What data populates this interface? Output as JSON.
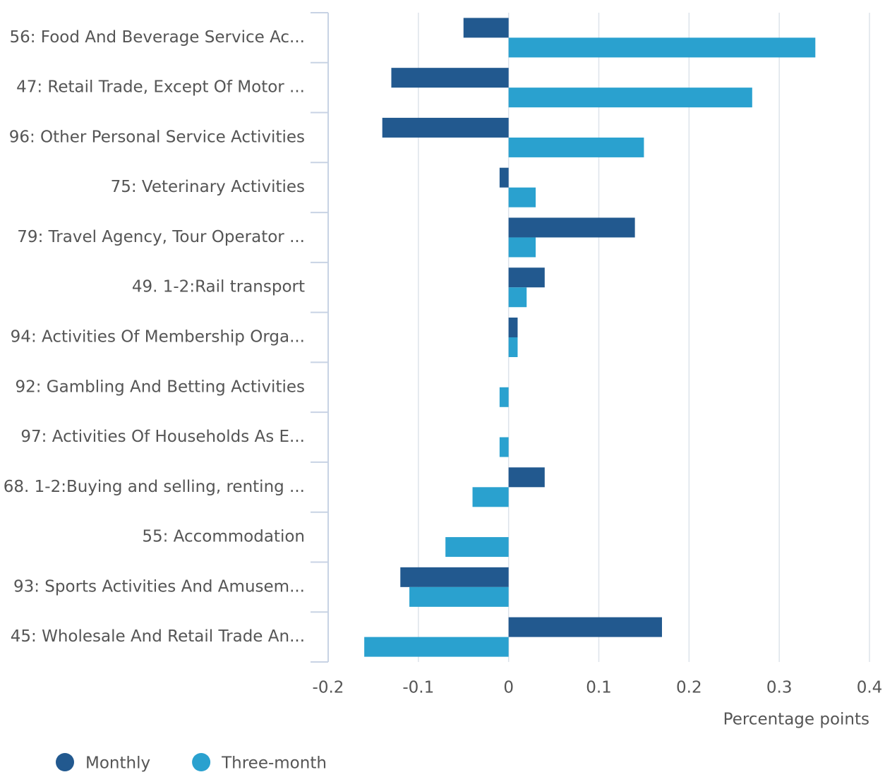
{
  "chart_data": {
    "type": "bar",
    "orientation": "horizontal",
    "x_label": "Percentage points",
    "categories": [
      "56: Food And Beverage Service Ac...",
      "47: Retail Trade, Except Of Motor ...",
      "96: Other Personal Service Activities",
      "75: Veterinary Activities",
      "79: Travel Agency, Tour Operator ...",
      "49. 1-2:Rail transport",
      "94: Activities Of Membership Orga...",
      "92: Gambling And Betting Activities",
      "97: Activities Of Households As E...",
      "68. 1-2:Buying and selling, renting ...",
      "55: Accommodation",
      "93: Sports Activities And Amusem...",
      "45: Wholesale And Retail Trade An..."
    ],
    "series": [
      {
        "name": "Monthly",
        "color": "#22598f",
        "values": [
          -0.05,
          -0.13,
          -0.14,
          -0.01,
          0.14,
          0.04,
          0.01,
          0,
          0,
          0.04,
          0,
          -0.12,
          0.17
        ]
      },
      {
        "name": "Three-month",
        "color": "#2aa1cf",
        "values": [
          0.34,
          0.27,
          0.15,
          0.03,
          0.03,
          0.02,
          0.01,
          -0.01,
          -0.01,
          -0.04,
          -0.07,
          -0.11,
          -0.16
        ]
      }
    ],
    "xlim": [
      -0.2,
      0.4
    ],
    "xticks": [
      -0.2,
      -0.1,
      0,
      0.1,
      0.2,
      0.3,
      0.4
    ],
    "grid": true
  }
}
